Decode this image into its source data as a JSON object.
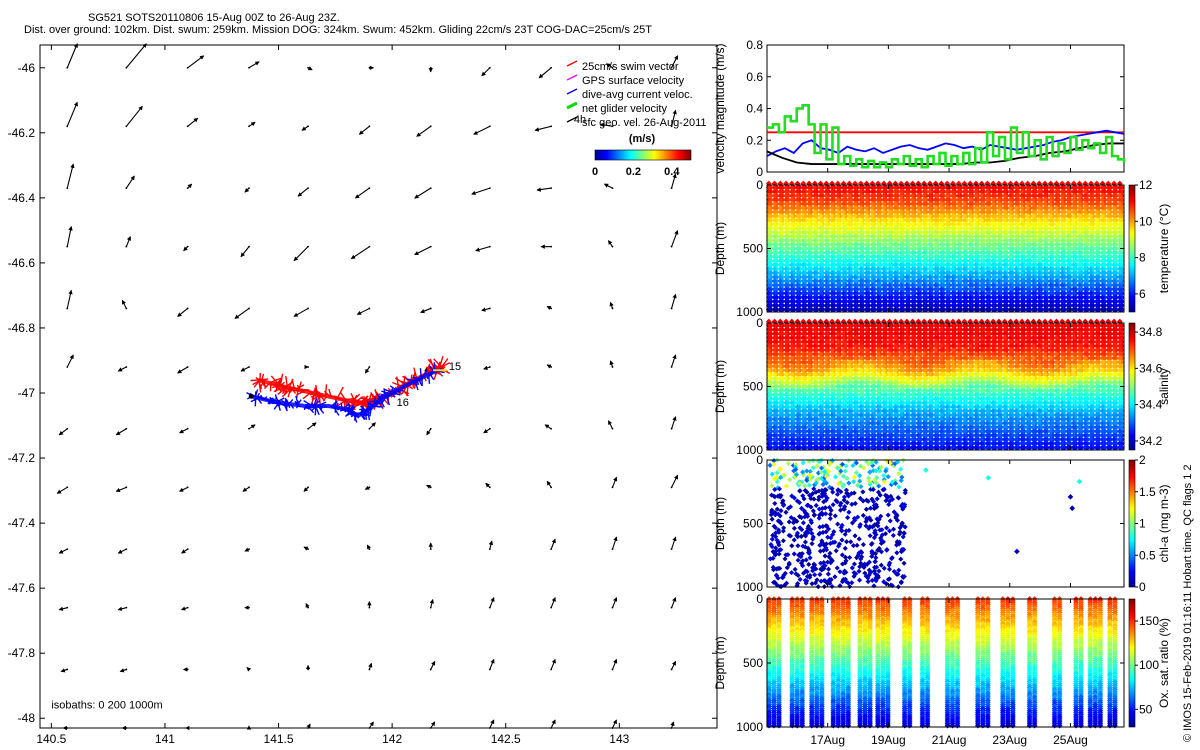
{
  "header": {
    "line1": "SG521 SOTS20110806 15-Aug 00Z to 26-Aug 23Z.",
    "line2": "Dist. over ground: 102km. Dist. swum: 259km. Mission DOG: 324km. Swum: 452km. Gliding 22cm/s 23T COG-DAC=25cm/s 25T"
  },
  "credit": "© IMOS 15-Feb-2019 01:16:11 Hobart time. QC flags 1  2",
  "chart_data": [
    {
      "type": "scatter",
      "role": "map",
      "xlim": [
        140.45,
        143.43
      ],
      "ylim": [
        -48.03,
        -45.93
      ],
      "x_ticks": [
        140.5,
        141,
        141.5,
        142,
        142.5,
        143
      ],
      "x_tick_labels": [
        "140.5",
        "141",
        "141.5",
        "142",
        "142.5",
        "143"
      ],
      "y_ticks": [
        -46,
        -46.2,
        -46.4,
        -46.6,
        -46.8,
        -47,
        -47.2,
        -47.4,
        -47.6,
        -47.8,
        -48
      ],
      "y_tick_labels": [
        "-46",
        "-46.2",
        "-46.4",
        "-46.6",
        "-46.8",
        "-47",
        "-47.2",
        "-47.4",
        "-47.6",
        "-47.8",
        "-48"
      ],
      "legend": [
        {
          "label": "25cm/s swim vector",
          "color": "#ff0000"
        },
        {
          "label": "GPS surface velocity",
          "color": "#ff00ff"
        },
        {
          "label": "dive-avg current veloc.",
          "color": "#0000ff"
        },
        {
          "label": "net glider velocity",
          "color": "#00dd00"
        },
        {
          "label": "sfc geo. vel. 26-Aug-2011",
          "color": "#000000"
        }
      ],
      "legend_placement": "top-right",
      "colorbar": {
        "title": "(m/s)",
        "range": [
          0,
          0.5
        ],
        "ticks": [
          "0",
          "0.2",
          "0.4"
        ]
      },
      "annotations": [
        {
          "text": "15",
          "x": 142.25,
          "y": -46.93
        },
        {
          "text": "16",
          "x": 142.02,
          "y": -47.04
        },
        {
          "text": "4h",
          "x": 142.8,
          "y": -46.17
        },
        {
          "text": "isobaths: 0   200  1000m",
          "x": 140.5,
          "y": -47.97
        }
      ],
      "track_red": [
        [
          141.41,
          -46.96
        ],
        [
          141.52,
          -46.98
        ],
        [
          141.65,
          -47.0
        ],
        [
          141.78,
          -47.02
        ],
        [
          141.86,
          -47.03
        ],
        [
          141.93,
          -47.02
        ],
        [
          142.02,
          -46.99
        ],
        [
          142.1,
          -46.96
        ],
        [
          142.18,
          -46.93
        ],
        [
          142.22,
          -46.92
        ]
      ],
      "track_blue": [
        [
          141.38,
          -47.01
        ],
        [
          141.5,
          -47.03
        ],
        [
          141.62,
          -47.04
        ],
        [
          141.72,
          -47.04
        ],
        [
          141.8,
          -47.05
        ],
        [
          141.85,
          -47.07
        ],
        [
          141.9,
          -47.05
        ],
        [
          141.97,
          -47.01
        ],
        [
          142.08,
          -46.97
        ],
        [
          142.2,
          -46.93
        ]
      ],
      "grid_x": [
        140.57,
        140.83,
        141.1,
        141.37,
        141.63,
        141.9,
        142.17,
        142.43,
        142.7,
        142.97,
        143.23
      ],
      "grid_y": [
        -46.0,
        -46.18,
        -46.37,
        -46.55,
        -46.74,
        -46.92,
        -47.11,
        -47.29,
        -47.48,
        -47.66,
        -47.85,
        -48.03
      ],
      "vectors_u": [
        [
          0.05,
          0.1,
          0.08,
          0.05,
          0.02,
          0.02,
          0,
          -0.04,
          -0.06,
          -0.03,
          0.03
        ],
        [
          0.05,
          0.08,
          0.05,
          0.03,
          -0.03,
          -0.05,
          -0.07,
          -0.08,
          -0.08,
          -0.06,
          0.02
        ],
        [
          0.03,
          0.04,
          0.02,
          -0.02,
          -0.05,
          -0.07,
          -0.08,
          -0.09,
          -0.07,
          -0.04,
          0.02
        ],
        [
          0.02,
          0.02,
          -0.02,
          -0.04,
          -0.07,
          -0.09,
          -0.08,
          -0.07,
          -0.05,
          -0.02,
          0.03
        ],
        [
          0.02,
          -0.02,
          -0.05,
          -0.07,
          -0.07,
          -0.06,
          -0.05,
          -0.04,
          -0.02,
          -0.01,
          0.02
        ],
        [
          0.03,
          -0.04,
          -0.05,
          -0.04,
          0.0,
          -0.02,
          -0.03,
          -0.03,
          -0.02,
          -0.01,
          0.02
        ],
        [
          -0.04,
          -0.05,
          -0.04,
          0.03,
          0.04,
          0.03,
          -0.02,
          -0.03,
          -0.03,
          -0.02,
          0.02
        ],
        [
          -0.05,
          -0.05,
          -0.04,
          -0.03,
          -0.02,
          -0.02,
          -0.02,
          -0.02,
          -0.02,
          0.02,
          0.03
        ],
        [
          -0.04,
          -0.04,
          -0.03,
          -0.02,
          -0.02,
          -0.01,
          0.0,
          0.01,
          0.02,
          0.02,
          0.02
        ],
        [
          -0.04,
          -0.04,
          -0.03,
          -0.02,
          -0.01,
          0.0,
          0.01,
          0.02,
          0.02,
          0.02,
          0.02
        ],
        [
          -0.03,
          -0.03,
          -0.02,
          -0.01,
          0.0,
          0.01,
          0.02,
          0.02,
          0.02,
          0.02,
          0.02
        ],
        [
          -0.02,
          -0.02,
          -0.01,
          0.0,
          0.01,
          0.02,
          0.02,
          0.02,
          0.02,
          0.02,
          0.01
        ]
      ],
      "vectors_v": [
        [
          0.12,
          0.12,
          0.06,
          0.03,
          -0.01,
          0,
          -0.02,
          -0.04,
          -0.05,
          0.02,
          0.06
        ],
        [
          0.12,
          0.1,
          0.04,
          0.02,
          -0.02,
          -0.04,
          -0.05,
          -0.04,
          -0.02,
          0.01,
          0.08
        ],
        [
          0.12,
          0.06,
          0.02,
          -0.02,
          -0.04,
          -0.05,
          -0.05,
          -0.03,
          -0.01,
          0.02,
          0.07
        ],
        [
          0.1,
          0.05,
          -0.02,
          -0.05,
          -0.07,
          -0.06,
          -0.04,
          -0.02,
          0.0,
          0.03,
          0.08
        ],
        [
          0.09,
          0.04,
          -0.04,
          -0.05,
          -0.04,
          -0.03,
          -0.02,
          -0.01,
          0.01,
          0.03,
          0.07
        ],
        [
          0.06,
          -0.02,
          -0.03,
          -0.02,
          0.0,
          -0.03,
          -0.02,
          -0.01,
          0.01,
          0.03,
          0.06
        ],
        [
          -0.03,
          -0.03,
          -0.02,
          0.02,
          0.03,
          0.03,
          -0.03,
          -0.02,
          0.02,
          0.04,
          0.06
        ],
        [
          -0.03,
          -0.02,
          -0.02,
          -0.02,
          -0.02,
          -0.01,
          0.01,
          0.02,
          0.03,
          0.05,
          0.06
        ],
        [
          -0.02,
          -0.02,
          -0.02,
          -0.01,
          0.01,
          0.02,
          0.03,
          0.04,
          0.05,
          0.06,
          0.06
        ],
        [
          -0.01,
          -0.01,
          -0.01,
          0.0,
          0.02,
          0.03,
          0.04,
          0.05,
          0.05,
          0.05,
          0.05
        ],
        [
          -0.01,
          -0.01,
          0.0,
          0.01,
          0.02,
          0.03,
          0.04,
          0.05,
          0.05,
          0.05,
          0.04
        ],
        [
          0.0,
          0.0,
          0.0,
          0.01,
          0.02,
          0.03,
          0.03,
          0.04,
          0.04,
          0.04,
          0.03
        ]
      ]
    },
    {
      "type": "line",
      "role": "velocity",
      "ylabel": "velocity magnitude (m/s)",
      "ylim": [
        0,
        0.8
      ],
      "y_ticks": [
        0,
        0.2,
        0.4,
        0.6,
        0.8
      ],
      "y_tick_labels": [
        "0",
        "0.2",
        "0.4",
        "0.6",
        "0.8"
      ],
      "xlim": [
        0,
        12
      ],
      "series": [
        {
          "color": "#ff0000",
          "constant": 0.25
        },
        {
          "color": "#0000ff",
          "x": [
            0,
            0.3,
            0.6,
            0.9,
            1.2,
            1.5,
            1.8,
            2.1,
            2.4,
            2.7,
            3.0,
            3.3,
            3.6,
            3.9,
            4.2,
            4.5,
            4.8,
            5.1,
            5.4,
            5.7,
            6.0,
            6.3,
            6.6,
            6.9,
            7.2,
            7.5,
            7.8,
            8.1,
            8.4,
            8.7,
            9.0,
            9.3,
            9.6,
            9.9,
            10.2,
            10.5,
            10.8,
            11.1,
            11.4,
            11.7,
            12.0
          ],
          "values": [
            0.1,
            0.13,
            0.15,
            0.12,
            0.18,
            0.2,
            0.15,
            0.14,
            0.12,
            0.16,
            0.14,
            0.13,
            0.15,
            0.12,
            0.14,
            0.16,
            0.17,
            0.15,
            0.14,
            0.16,
            0.18,
            0.17,
            0.15,
            0.16,
            0.14,
            0.17,
            0.16,
            0.15,
            0.14,
            0.15,
            0.16,
            0.17,
            0.19,
            0.2,
            0.22,
            0.23,
            0.24,
            0.25,
            0.26,
            0.25,
            0.24
          ]
        },
        {
          "color": "#000000",
          "x": [
            0,
            0.5,
            1.0,
            1.5,
            2.0,
            2.5,
            3.0,
            3.5,
            4.0,
            4.5,
            5.0,
            5.5,
            6.0,
            6.5,
            7.0,
            7.5,
            8.0,
            8.5,
            9.0,
            9.5,
            10.0,
            10.5,
            11.0,
            11.5,
            12.0
          ],
          "values": [
            0.13,
            0.09,
            0.06,
            0.05,
            0.05,
            0.05,
            0.05,
            0.05,
            0.05,
            0.05,
            0.05,
            0.05,
            0.05,
            0.05,
            0.06,
            0.06,
            0.07,
            0.09,
            0.1,
            0.12,
            0.13,
            0.15,
            0.17,
            0.18,
            0.18
          ]
        },
        {
          "color": "#22dd22",
          "x": [
            0,
            0.2,
            0.4,
            0.6,
            0.8,
            1.0,
            1.2,
            1.4,
            1.6,
            1.8,
            2.0,
            2.2,
            2.4,
            2.6,
            2.8,
            3.0,
            3.2,
            3.4,
            3.6,
            3.8,
            4.0,
            4.2,
            4.4,
            4.6,
            4.8,
            5.0,
            5.2,
            5.4,
            5.6,
            5.8,
            6.0,
            6.2,
            6.4,
            6.6,
            6.8,
            7.0,
            7.2,
            7.4,
            7.6,
            7.8,
            8.0,
            8.2,
            8.4,
            8.6,
            8.8,
            9.0,
            9.2,
            9.4,
            9.6,
            9.8,
            10.0,
            10.2,
            10.4,
            10.6,
            10.8,
            11.0,
            11.2,
            11.4,
            11.6,
            11.8,
            12.0
          ],
          "values": [
            0.28,
            0.3,
            0.25,
            0.35,
            0.32,
            0.4,
            0.42,
            0.3,
            0.12,
            0.3,
            0.08,
            0.28,
            0.05,
            0.1,
            0.04,
            0.08,
            0.03,
            0.07,
            0.03,
            0.06,
            0.03,
            0.08,
            0.05,
            0.1,
            0.04,
            0.08,
            0.03,
            0.1,
            0.05,
            0.12,
            0.04,
            0.1,
            0.05,
            0.12,
            0.05,
            0.15,
            0.06,
            0.25,
            0.1,
            0.22,
            0.08,
            0.28,
            0.12,
            0.25,
            0.1,
            0.2,
            0.08,
            0.22,
            0.1,
            0.18,
            0.12,
            0.22,
            0.14,
            0.2,
            0.15,
            0.18,
            0.12,
            0.22,
            0.1,
            0.08,
            0.06
          ]
        }
      ]
    },
    {
      "type": "heatmap",
      "role": "temperature",
      "ylabel": "Depth (m)",
      "colorbar_label": "temperature (°C)",
      "colorbar_ticks": [
        "6",
        "8",
        "10",
        "12"
      ],
      "crange": [
        5,
        12
      ],
      "depth_ticks": [
        "0",
        "500",
        "1000"
      ],
      "profile": [
        [
          0,
          11.2
        ],
        [
          150,
          10.6
        ],
        [
          300,
          9.5
        ],
        [
          450,
          8.6
        ],
        [
          600,
          7.8
        ],
        [
          750,
          6.9
        ],
        [
          900,
          5.9
        ],
        [
          1000,
          5.3
        ]
      ]
    },
    {
      "type": "heatmap",
      "role": "salinity",
      "ylabel": "Depth (m)",
      "colorbar_label": "salinity",
      "colorbar_ticks": [
        "34.2",
        "34.4",
        "34.6",
        "34.8"
      ],
      "crange": [
        34.15,
        34.85
      ],
      "depth_ticks": [
        "0",
        "500",
        "1000"
      ],
      "profile": [
        [
          0,
          34.78
        ],
        [
          200,
          34.75
        ],
        [
          380,
          34.64
        ],
        [
          520,
          34.48
        ],
        [
          700,
          34.36
        ],
        [
          900,
          34.28
        ],
        [
          1000,
          34.24
        ]
      ]
    },
    {
      "type": "scatter",
      "role": "chlorophyll",
      "ylabel": "Depth (m)",
      "colorbar_label": "chl-a (mg m-3)",
      "colorbar_ticks": [
        "0",
        "0.5",
        "1",
        "1.5",
        "2"
      ],
      "crange": [
        0,
        2
      ],
      "depth_ticks": [
        "0",
        "500",
        "1000"
      ],
      "isolated_points": [
        [
          0.445,
          80
        ],
        [
          0.62,
          140
        ],
        [
          0.7,
          720
        ],
        [
          0.85,
          290
        ],
        [
          0.855,
          380
        ],
        [
          0.875,
          170
        ]
      ]
    },
    {
      "type": "scatter",
      "role": "oxygen",
      "ylabel": "Depth (m)",
      "colorbar_label": "Ox. sat. ratio (%)",
      "colorbar_ticks": [
        "50",
        "100",
        "150"
      ],
      "crange": [
        30,
        175
      ],
      "depth_ticks": [
        "0",
        "500",
        "1000"
      ],
      "data_windows": [
        [
          0.0,
          0.045
        ],
        [
          0.065,
          0.11
        ],
        [
          0.12,
          0.165
        ],
        [
          0.18,
          0.235
        ],
        [
          0.255,
          0.29
        ],
        [
          0.305,
          0.35
        ],
        [
          0.38,
          0.405
        ],
        [
          0.43,
          0.46
        ],
        [
          0.5,
          0.545
        ],
        [
          0.585,
          0.625
        ],
        [
          0.655,
          0.7
        ],
        [
          0.73,
          0.76
        ],
        [
          0.8,
          0.83
        ],
        [
          0.86,
          0.89
        ],
        [
          0.9,
          0.935
        ],
        [
          0.955,
          0.98
        ]
      ]
    }
  ],
  "time_axis": {
    "labels": [
      "17Aug",
      "19Aug",
      "21Aug",
      "23Aug",
      "25Aug"
    ],
    "positions": [
      0.17,
      0.34,
      0.51,
      0.68,
      0.85
    ]
  }
}
